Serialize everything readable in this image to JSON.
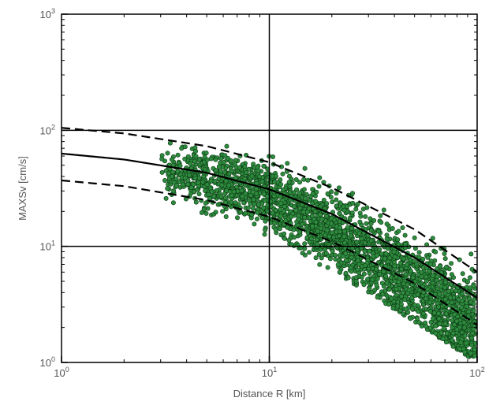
{
  "chart_data": {
    "type": "scatter",
    "xlabel": "Distance R [km]",
    "ylabel": "MAXSv [cm/s]",
    "x_scale": "log",
    "y_scale": "log",
    "xlim": [
      1,
      100
    ],
    "ylim": [
      1,
      1000
    ],
    "grid": "major decades",
    "x_ticks": [
      {
        "base": "10",
        "exp": "0",
        "value": 1
      },
      {
        "base": "10",
        "exp": "1",
        "value": 10
      },
      {
        "base": "10",
        "exp": "2",
        "value": 100
      }
    ],
    "y_ticks": [
      {
        "base": "10",
        "exp": "0",
        "value": 1
      },
      {
        "base": "10",
        "exp": "1",
        "value": 10
      },
      {
        "base": "10",
        "exp": "2",
        "value": 100
      },
      {
        "base": "10",
        "exp": "3",
        "value": 1000
      }
    ],
    "point_color": "#2e8b3e",
    "point_edge_color": "#0c3a14",
    "point_cloud": {
      "x_range": [
        3,
        100
      ],
      "center_trend": [
        {
          "x": 3,
          "y": 45
        },
        {
          "x": 5,
          "y": 38
        },
        {
          "x": 10,
          "y": 27
        },
        {
          "x": 20,
          "y": 14
        },
        {
          "x": 40,
          "y": 6
        },
        {
          "x": 70,
          "y": 3
        },
        {
          "x": 100,
          "y": 2
        }
      ],
      "upper_envelope": [
        {
          "x": 3,
          "y": 90
        },
        {
          "x": 10,
          "y": 65
        },
        {
          "x": 30,
          "y": 30
        },
        {
          "x": 100,
          "y": 12
        }
      ],
      "lower_envelope": [
        {
          "x": 3,
          "y": 25
        },
        {
          "x": 10,
          "y": 12
        },
        {
          "x": 30,
          "y": 4
        },
        {
          "x": 100,
          "y": 1
        }
      ]
    },
    "series": [
      {
        "style": "solid",
        "points": [
          {
            "x": 1,
            "y": 63
          },
          {
            "x": 2,
            "y": 56
          },
          {
            "x": 5,
            "y": 43
          },
          {
            "x": 10,
            "y": 31
          },
          {
            "x": 20,
            "y": 19
          },
          {
            "x": 50,
            "y": 8
          },
          {
            "x": 100,
            "y": 3.6
          }
        ]
      },
      {
        "style": "dashed",
        "points": [
          {
            "x": 1,
            "y": 105
          },
          {
            "x": 2,
            "y": 94
          },
          {
            "x": 5,
            "y": 73
          },
          {
            "x": 10,
            "y": 53
          },
          {
            "x": 20,
            "y": 32
          },
          {
            "x": 50,
            "y": 14
          },
          {
            "x": 100,
            "y": 6
          }
        ]
      },
      {
        "style": "dashed",
        "points": [
          {
            "x": 1,
            "y": 37
          },
          {
            "x": 2,
            "y": 33
          },
          {
            "x": 5,
            "y": 25
          },
          {
            "x": 10,
            "y": 18
          },
          {
            "x": 20,
            "y": 11
          },
          {
            "x": 50,
            "y": 4.8
          },
          {
            "x": 100,
            "y": 2.1
          }
        ]
      }
    ]
  }
}
